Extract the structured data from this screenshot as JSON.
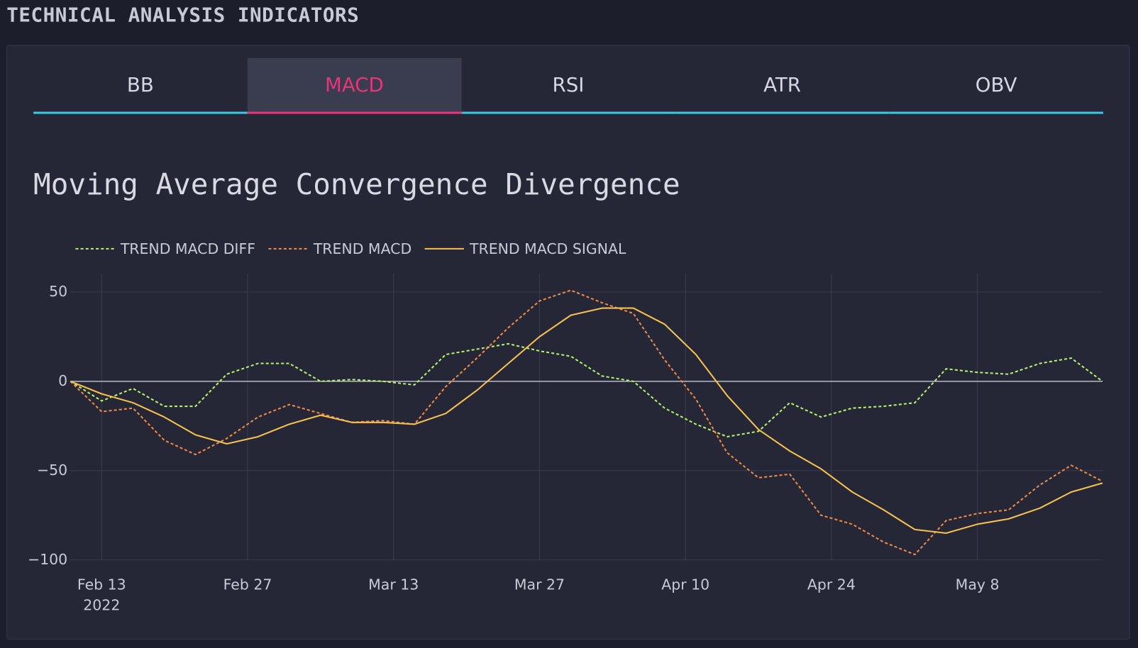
{
  "header": {
    "title": "TECHNICAL ANALYSIS INDICATORS"
  },
  "tabs": [
    "BB",
    "MACD",
    "RSI",
    "ATR",
    "OBV"
  ],
  "active_tab": 1,
  "chart_data": {
    "type": "line",
    "title": "Moving Average Convergence Divergence",
    "x": [
      "2022-02-10",
      "2022-02-13",
      "2022-02-16",
      "2022-02-19",
      "2022-02-22",
      "2022-02-25",
      "2022-02-28",
      "2022-03-03",
      "2022-03-06",
      "2022-03-09",
      "2022-03-12",
      "2022-03-15",
      "2022-03-18",
      "2022-03-21",
      "2022-03-24",
      "2022-03-27",
      "2022-03-30",
      "2022-04-02",
      "2022-04-05",
      "2022-04-08",
      "2022-04-11",
      "2022-04-14",
      "2022-04-17",
      "2022-04-20",
      "2022-04-23",
      "2022-04-26",
      "2022-04-29",
      "2022-05-02",
      "2022-05-05",
      "2022-05-08",
      "2022-05-11",
      "2022-05-14",
      "2022-05-17",
      "2022-05-20"
    ],
    "series": [
      {
        "name": "TREND MACD DIFF",
        "color": "#b8f06a",
        "dash": true,
        "values": [
          0,
          -11,
          -4,
          -14,
          -14,
          4,
          10,
          10,
          0,
          1,
          0,
          -2,
          15,
          18,
          21,
          17,
          14,
          3,
          0,
          -15,
          -24,
          -31,
          -28,
          -12,
          -20,
          -15,
          -14,
          -12,
          7,
          5,
          4,
          10,
          13,
          0
        ]
      },
      {
        "name": "TREND MACD",
        "color": "#f08a45",
        "dash": true,
        "values": [
          0,
          -17,
          -15,
          -33,
          -41,
          -32,
          -20,
          -13,
          -18,
          -23,
          -22,
          -24,
          -3,
          13,
          30,
          45,
          51,
          44,
          38,
          12,
          -10,
          -40,
          -54,
          -52,
          -75,
          -80,
          -90,
          -97,
          -78,
          -74,
          -72,
          -58,
          -47,
          -56
        ]
      },
      {
        "name": "TREND MACD SIGNAL",
        "color": "#f7c14d",
        "dash": false,
        "values": [
          0,
          -7,
          -12,
          -20,
          -30,
          -35,
          -31,
          -24,
          -19,
          -23,
          -23,
          -24,
          -18,
          -5,
          10,
          25,
          37,
          41,
          41,
          32,
          15,
          -8,
          -27,
          -39,
          -49,
          -62,
          -72,
          -83,
          -85,
          -80,
          -77,
          -71,
          -62,
          -57
        ]
      }
    ],
    "xlim": [
      "2022-02-10",
      "2022-05-20"
    ],
    "xticks": [
      {
        "value": "2022-02-13",
        "label": "Feb 13\n2022"
      },
      {
        "value": "2022-02-27",
        "label": "Feb 27"
      },
      {
        "value": "2022-03-13",
        "label": "Mar 13"
      },
      {
        "value": "2022-03-27",
        "label": "Mar 27"
      },
      {
        "value": "2022-04-10",
        "label": "Apr 10"
      },
      {
        "value": "2022-04-24",
        "label": "Apr 24"
      },
      {
        "value": "2022-05-08",
        "label": "May 8"
      }
    ],
    "ylim": [
      -100,
      60
    ],
    "yticks": [
      {
        "value": -100,
        "label": "−100"
      },
      {
        "value": -50,
        "label": "−50"
      },
      0,
      50
    ],
    "grid": true,
    "zeroline": true
  }
}
